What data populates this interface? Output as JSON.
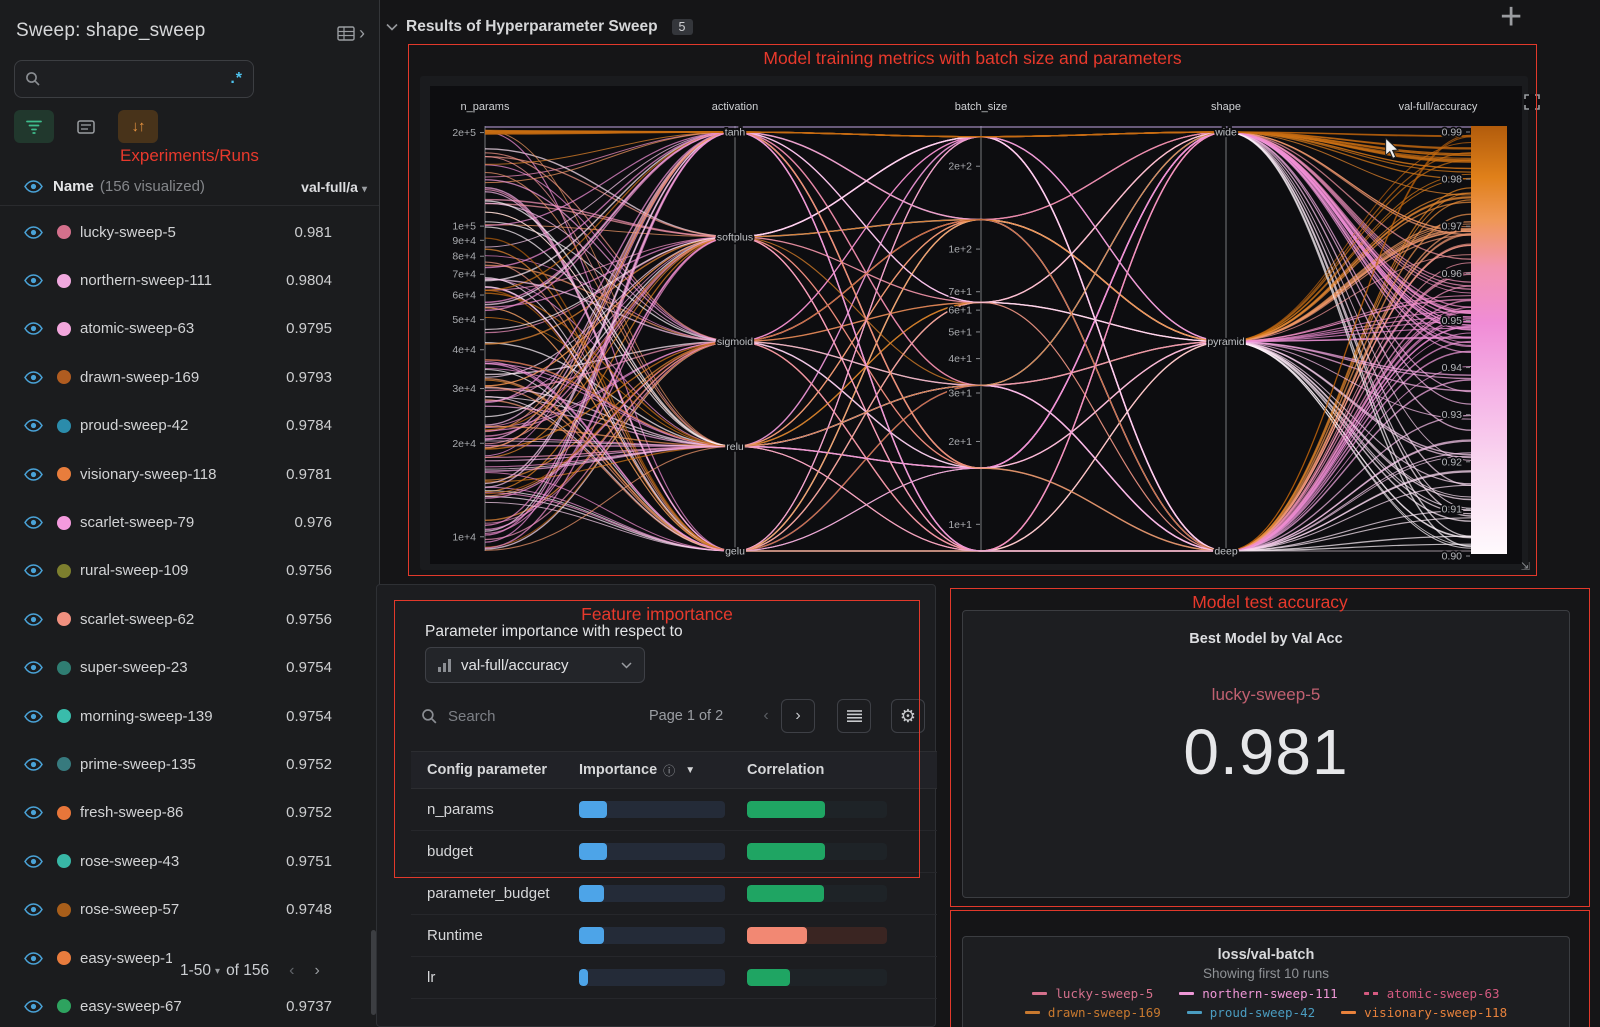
{
  "sidebar": {
    "title": "Sweep: shape_sweep",
    "annotation": "Experiments/Runs",
    "search": {
      "placeholder": "",
      "regex_label": ".*"
    },
    "columns": {
      "name": "Name",
      "count": "(156 visualized)",
      "metric": "val-full/a"
    },
    "runs": [
      {
        "name": "lucky-sweep-5",
        "value": "0.981",
        "color": "#d4708c"
      },
      {
        "name": "northern-sweep-111",
        "value": "0.9804",
        "color": "#f0a8de"
      },
      {
        "name": "atomic-sweep-63",
        "value": "0.9795",
        "color": "#f2a6dc"
      },
      {
        "name": "drawn-sweep-169",
        "value": "0.9793",
        "color": "#b05c20"
      },
      {
        "name": "proud-sweep-42",
        "value": "0.9784",
        "color": "#2b8cab"
      },
      {
        "name": "visionary-sweep-118",
        "value": "0.9781",
        "color": "#e87d3c"
      },
      {
        "name": "scarlet-sweep-79",
        "value": "0.976",
        "color": "#f49ade"
      },
      {
        "name": "rural-sweep-109",
        "value": "0.9756",
        "color": "#7d7f2e"
      },
      {
        "name": "scarlet-sweep-62",
        "value": "0.9756",
        "color": "#f0907f"
      },
      {
        "name": "super-sweep-23",
        "value": "0.9754",
        "color": "#2f7d72"
      },
      {
        "name": "morning-sweep-139",
        "value": "0.9754",
        "color": "#39bcab"
      },
      {
        "name": "prime-sweep-135",
        "value": "0.9752",
        "color": "#377a7e"
      },
      {
        "name": "fresh-sweep-86",
        "value": "0.9752",
        "color": "#e8763a"
      },
      {
        "name": "rose-sweep-43",
        "value": "0.9751",
        "color": "#38b7a6"
      },
      {
        "name": "rose-sweep-57",
        "value": "0.9748",
        "color": "#a85e1a"
      },
      {
        "name": "easy-sweep-1",
        "value": "",
        "color": "#e87c3d"
      },
      {
        "name": "easy-sweep-67",
        "value": "0.9737",
        "color": "#2ea35f"
      }
    ],
    "pagination": {
      "range": "1-50",
      "total": "of 156"
    }
  },
  "header": {
    "title": "Results of Hyperparameter Sweep",
    "badge": "5"
  },
  "annotations": {
    "parallel": "Model training metrics with batch size and parameters",
    "importance": "Feature importance",
    "best_model": "Model test accuracy"
  },
  "importance_panel": {
    "subtitle": "Parameter importance with respect to",
    "metric_dropdown": "val-full/accuracy",
    "search_placeholder": "Search",
    "page_label": "Page 1 of 2",
    "columns": {
      "parameter": "Config parameter",
      "importance": "Importance",
      "correlation": "Correlation"
    }
  },
  "best_model_panel": {
    "title": "Best Model by Val Acc",
    "run": "lucky-sweep-5",
    "value": "0.981"
  },
  "loss_panel": {
    "title": "loss/val-batch",
    "subtitle": "Showing first 10 runs"
  },
  "chart_data": [
    {
      "type": "parallel-coordinates",
      "title": "Results of Hyperparameter Sweep",
      "n_runs_visualized": 156,
      "color_metric": "val-full/accuracy",
      "legend_position": "right-colorbar",
      "axes": [
        {
          "name": "n_params",
          "scale": "log",
          "range": [
            9000,
            210000
          ],
          "ticks": [
            "2e+5",
            "1e+5",
            "9e+4",
            "8e+4",
            "7e+4",
            "6e+4",
            "5e+4",
            "4e+4",
            "3e+4",
            "2e+4",
            "1e+4"
          ]
        },
        {
          "name": "activation",
          "scale": "categorical",
          "categories": [
            "tanh",
            "softplus",
            "sigmoid",
            "relu",
            "gelu"
          ]
        },
        {
          "name": "batch_size",
          "scale": "log",
          "range": [
            8,
            280
          ],
          "ticks": [
            "2e+2",
            "1e+2",
            "7e+1",
            "6e+1",
            "5e+1",
            "4e+1",
            "3e+1",
            "2e+1",
            "1e+1"
          ]
        },
        {
          "name": "shape",
          "scale": "categorical",
          "categories": [
            "wide",
            "pyramid",
            "deep"
          ]
        },
        {
          "name": "val-full/accuracy",
          "scale": "linear",
          "range": [
            0.9,
            0.99
          ],
          "colorbar": true,
          "ticks": [
            "0.99",
            "0.98",
            "0.97",
            "0.96",
            "0.95",
            "0.94",
            "0.93",
            "0.92",
            "0.91",
            "0.90"
          ]
        }
      ],
      "colorbar_gradient_top_to_bottom": [
        "#b25c0c",
        "#e0801a",
        "#ef9756",
        "#f293ae",
        "#f08cd6",
        "#f5b2e6",
        "#fad9f1",
        "#fffafd"
      ]
    },
    {
      "type": "table",
      "title": "Parameter importance with respect to val-full/accuracy",
      "columns": [
        "Config parameter",
        "Importance",
        "Correlation"
      ],
      "rows": [
        {
          "parameter": "n_params",
          "importance_bar_fraction": 0.19,
          "correlation_bar_fraction": 0.56,
          "correlation_sign": "positive"
        },
        {
          "parameter": "budget",
          "importance_bar_fraction": 0.19,
          "correlation_bar_fraction": 0.56,
          "correlation_sign": "positive"
        },
        {
          "parameter": "parameter_budget",
          "importance_bar_fraction": 0.17,
          "correlation_bar_fraction": 0.55,
          "correlation_sign": "positive"
        },
        {
          "parameter": "Runtime",
          "importance_bar_fraction": 0.17,
          "correlation_bar_fraction": 0.43,
          "correlation_sign": "negative"
        },
        {
          "parameter": "lr",
          "importance_bar_fraction": 0.06,
          "correlation_bar_fraction": 0.31,
          "correlation_sign": "positive"
        }
      ]
    },
    {
      "type": "scalar",
      "title": "Best Model by Val Acc",
      "run": "lucky-sweep-5",
      "value": 0.981
    },
    {
      "type": "line",
      "title": "loss/val-batch",
      "subtitle": "Showing first 10 runs",
      "legend": [
        {
          "name": "lucky-sweep-5",
          "color": "#d4708c",
          "dash": "solid"
        },
        {
          "name": "northern-sweep-111",
          "color": "#ee97d6",
          "dash": "solid"
        },
        {
          "name": "atomic-sweep-63",
          "color": "#d45a80",
          "dash": "dashed"
        },
        {
          "name": "drawn-sweep-169",
          "color": "#c8792f",
          "dash": "solid"
        },
        {
          "name": "proud-sweep-42",
          "color": "#4a9cc0",
          "dash": "solid"
        },
        {
          "name": "visionary-sweep-118",
          "color": "#e8823c",
          "dash": "solid"
        }
      ]
    }
  ]
}
